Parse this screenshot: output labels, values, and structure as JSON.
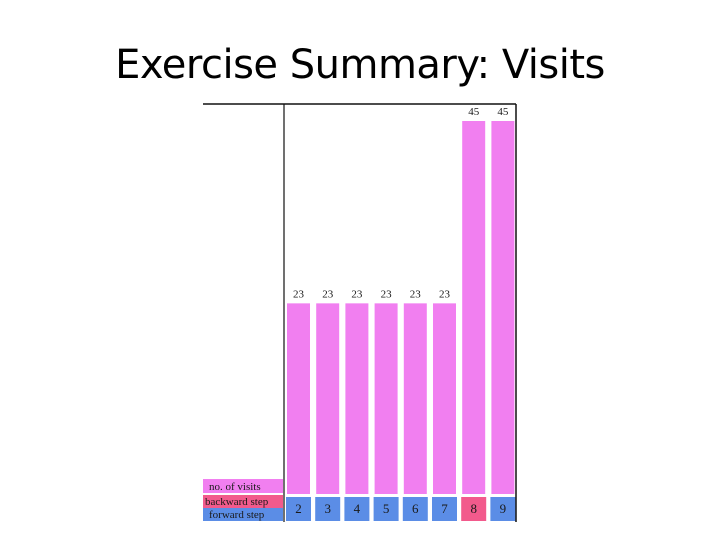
{
  "slide": {
    "title": "Exercise Summary: Visits"
  },
  "chart_data": {
    "type": "bar",
    "categories": [
      "2",
      "3",
      "4",
      "5",
      "6",
      "7",
      "8",
      "9"
    ],
    "series": [
      {
        "name": "no. of visits",
        "values": [
          23,
          23,
          23,
          23,
          23,
          23,
          45,
          45
        ]
      }
    ],
    "row_labels": {
      "visits": "no. of visits",
      "backward": "backward step",
      "forward": "forward step"
    },
    "backward_step_highlight": "8",
    "ylim": [
      0,
      46
    ],
    "grid": false,
    "colors": {
      "bar": "#f17ff0",
      "forward": "#5b8de6",
      "backward": "#f25a8c",
      "axis": "#111111"
    }
  }
}
